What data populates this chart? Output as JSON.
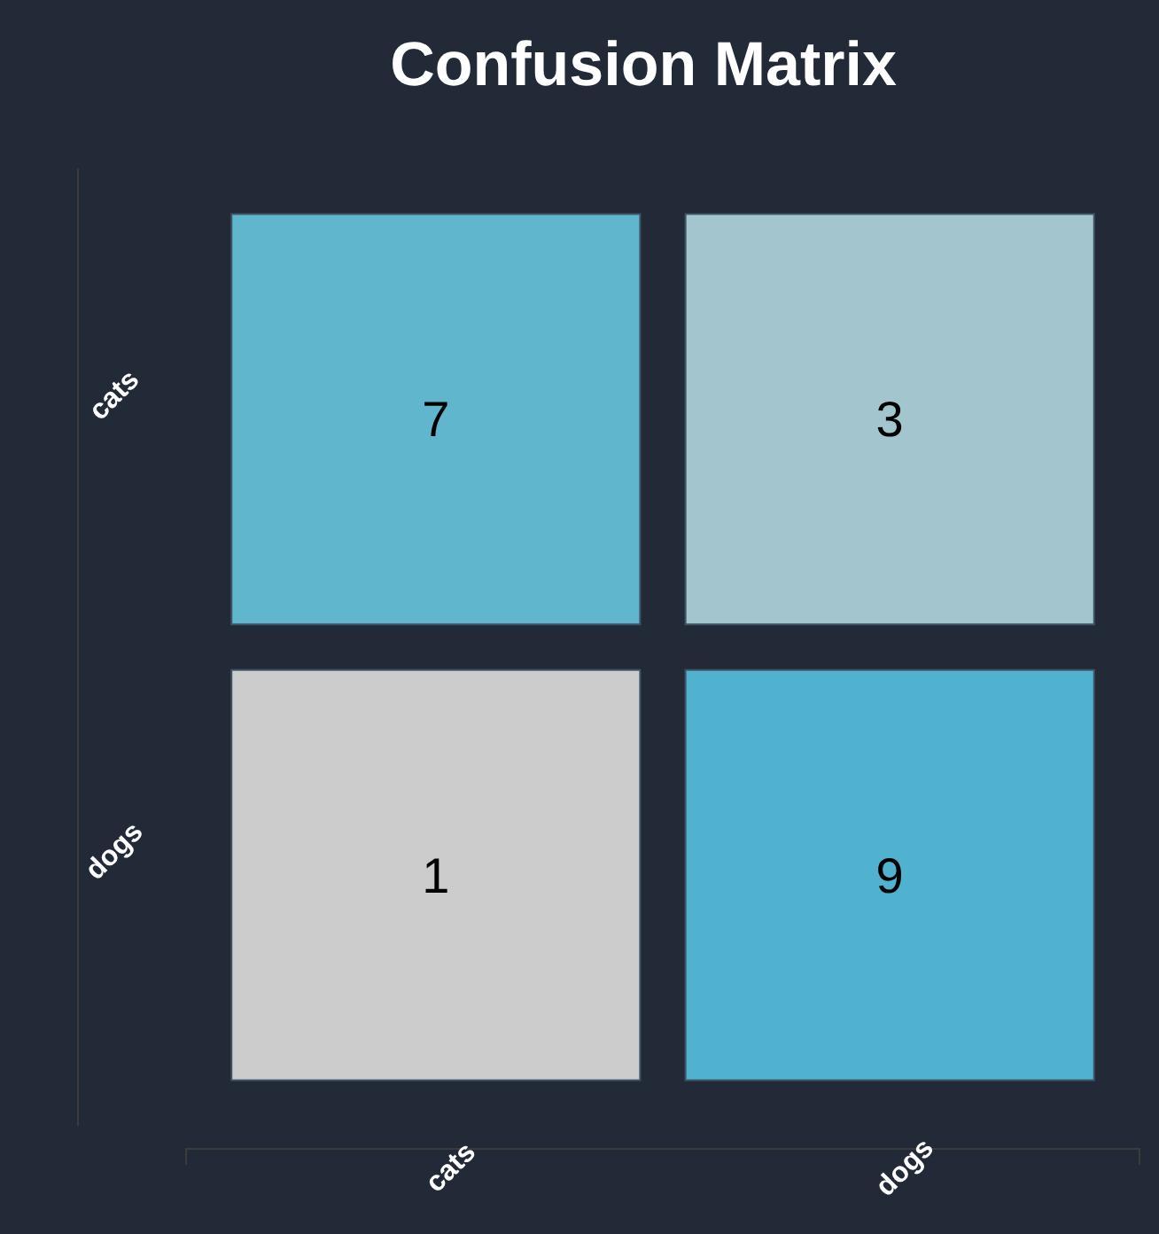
{
  "chart_data": {
    "type": "heatmap",
    "title": "Confusion Matrix",
    "categories": [
      "cats",
      "dogs"
    ],
    "y_categories": [
      "cats",
      "dogs"
    ],
    "cells": [
      [
        7,
        3
      ],
      [
        1,
        9
      ]
    ],
    "colors": [
      [
        "#60b6cd",
        "#a3c5cd"
      ],
      [
        "#cccccc",
        "#51b2d0"
      ]
    ],
    "data_labels": true
  }
}
